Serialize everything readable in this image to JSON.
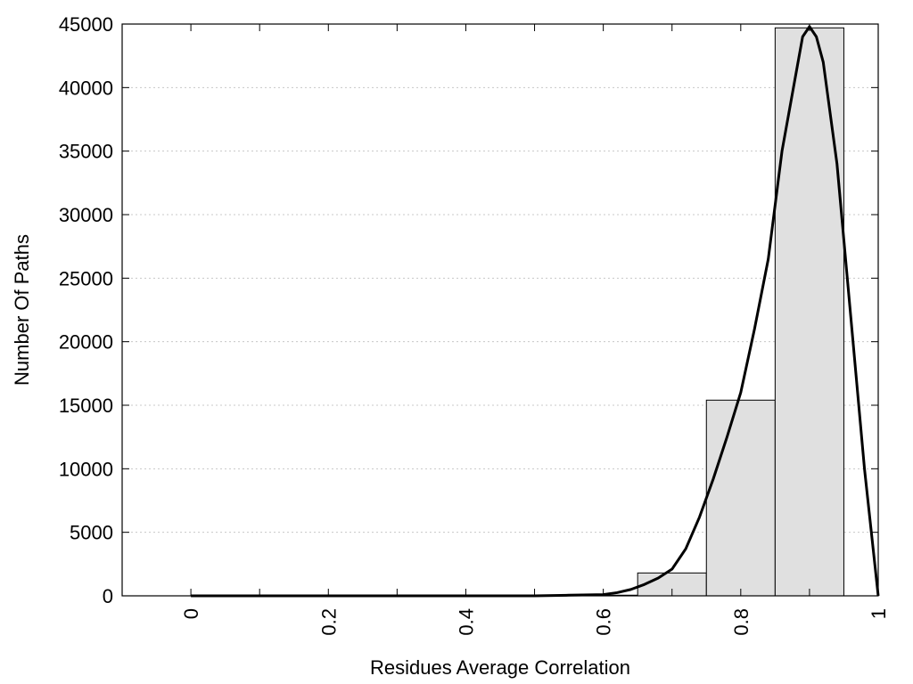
{
  "chart_data": {
    "type": "bar",
    "title": "",
    "xlabel": "Residues Average Correlation",
    "ylabel": "Number Of Paths",
    "xlim": [
      -0.1,
      1.0
    ],
    "ylim": [
      0,
      45000
    ],
    "x_ticks": [
      "0",
      "0.2",
      "0.4",
      "0.6",
      "0.8",
      "1"
    ],
    "x_tick_values": [
      0,
      0.2,
      0.4,
      0.6,
      0.8,
      1.0
    ],
    "y_ticks": [
      "0",
      "5000",
      "10000",
      "15000",
      "20000",
      "25000",
      "30000",
      "35000",
      "40000",
      "45000"
    ],
    "y_tick_values": [
      0,
      5000,
      10000,
      15000,
      20000,
      25000,
      30000,
      35000,
      40000,
      45000
    ],
    "grid": true,
    "bar_width": 0.1,
    "categories": [
      0,
      0.1,
      0.2,
      0.3,
      0.4,
      0.5,
      0.6,
      0.7,
      0.8,
      0.9
    ],
    "values": [
      0,
      0,
      0,
      0,
      0,
      0,
      50,
      1800,
      15400,
      44700
    ],
    "bar_color": "#e0e0e0",
    "curve": {
      "x": [
        0,
        0.5,
        0.55,
        0.6,
        0.62,
        0.64,
        0.66,
        0.68,
        0.7,
        0.72,
        0.74,
        0.76,
        0.78,
        0.8,
        0.82,
        0.84,
        0.86,
        0.88,
        0.89,
        0.9,
        0.91,
        0.92,
        0.94,
        0.96,
        0.98,
        1.0
      ],
      "y": [
        0,
        0,
        50,
        100,
        250,
        500,
        900,
        1400,
        2100,
        3700,
        6200,
        9200,
        12500,
        16000,
        21000,
        26500,
        35000,
        41000,
        44000,
        44800,
        44000,
        42000,
        34000,
        22000,
        10000,
        0
      ],
      "color": "#000000"
    }
  }
}
